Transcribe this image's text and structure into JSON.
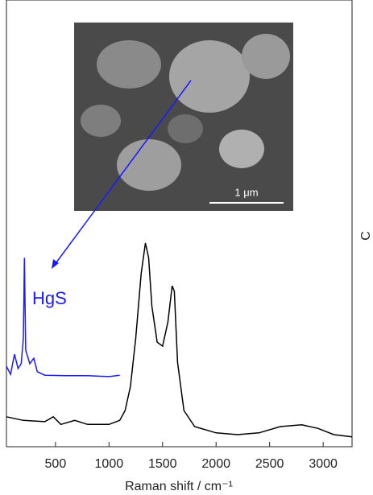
{
  "chart_data": {
    "type": "line",
    "x_label": "Raman shift / cm⁻¹",
    "y_label": "C",
    "annotations": [
      "1 μm"
    ],
    "xlim": [
      42,
      3270
    ],
    "ylim": [
      0,
      100
    ],
    "xticks": [
      500,
      1000,
      1500,
      2000,
      2500,
      3000
    ],
    "series": [
      {
        "color": "#000000",
        "x": [
          42,
          200,
          400,
          480,
          550,
          680,
          800,
          1000,
          1100,
          1150,
          1200,
          1250,
          1300,
          1340,
          1370,
          1400,
          1450,
          1500,
          1550,
          1590,
          1610,
          1640,
          1700,
          1800,
          2000,
          2200,
          2400,
          2600,
          2800,
          2950,
          3100,
          3270
        ],
        "values": [
          6.7,
          5.9,
          5.6,
          6.7,
          5.0,
          5.9,
          5.0,
          5.0,
          5.9,
          8.1,
          13.5,
          24.3,
          38.7,
          45.6,
          42.3,
          31.5,
          23.4,
          22.5,
          27.9,
          36.0,
          34.8,
          18.9,
          8.1,
          4.5,
          3.1,
          2.7,
          3.1,
          4.5,
          4.9,
          4.1,
          2.7,
          2.2
        ]
      },
      {
        "name": "HgS",
        "color": "#1a1aff",
        "x": [
          42,
          80,
          117,
          150,
          180,
          200,
          210,
          222,
          260,
          297,
          330,
          400,
          600,
          800,
          1000,
          1100
        ],
        "values": [
          18.0,
          16.2,
          20.7,
          17.5,
          18.6,
          24.3,
          42.3,
          21.6,
          18.6,
          19.8,
          16.8,
          16.0,
          15.9,
          15.9,
          15.7,
          16.0
        ]
      }
    ]
  }
}
